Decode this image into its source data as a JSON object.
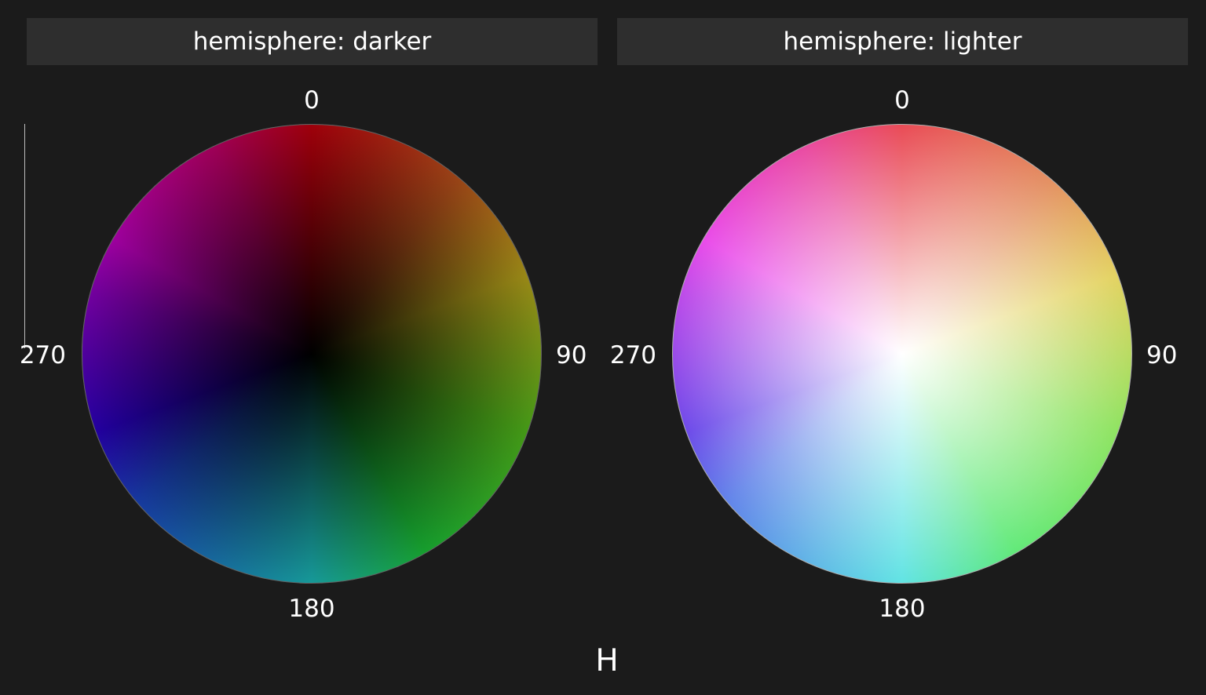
{
  "chart_data": {
    "type": "polar-color-wheel",
    "xlabel": "H",
    "angular_axis": {
      "ticks": [
        "0",
        "90",
        "180",
        "270"
      ],
      "direction": "clockwise",
      "zero_at": "top"
    },
    "panels": [
      {
        "facet_label": "hemisphere: darker",
        "center_color": "#000000"
      },
      {
        "facet_label": "hemisphere: lighter",
        "center_color": "#ffffff"
      }
    ],
    "colors": {
      "background": "#1b1b1b",
      "strip": "#2e2e2e",
      "hue_0": "#e0000f",
      "hue_90": "#60d820",
      "hue_180": "#20d8d8",
      "hue_270": "#3000e0"
    }
  }
}
